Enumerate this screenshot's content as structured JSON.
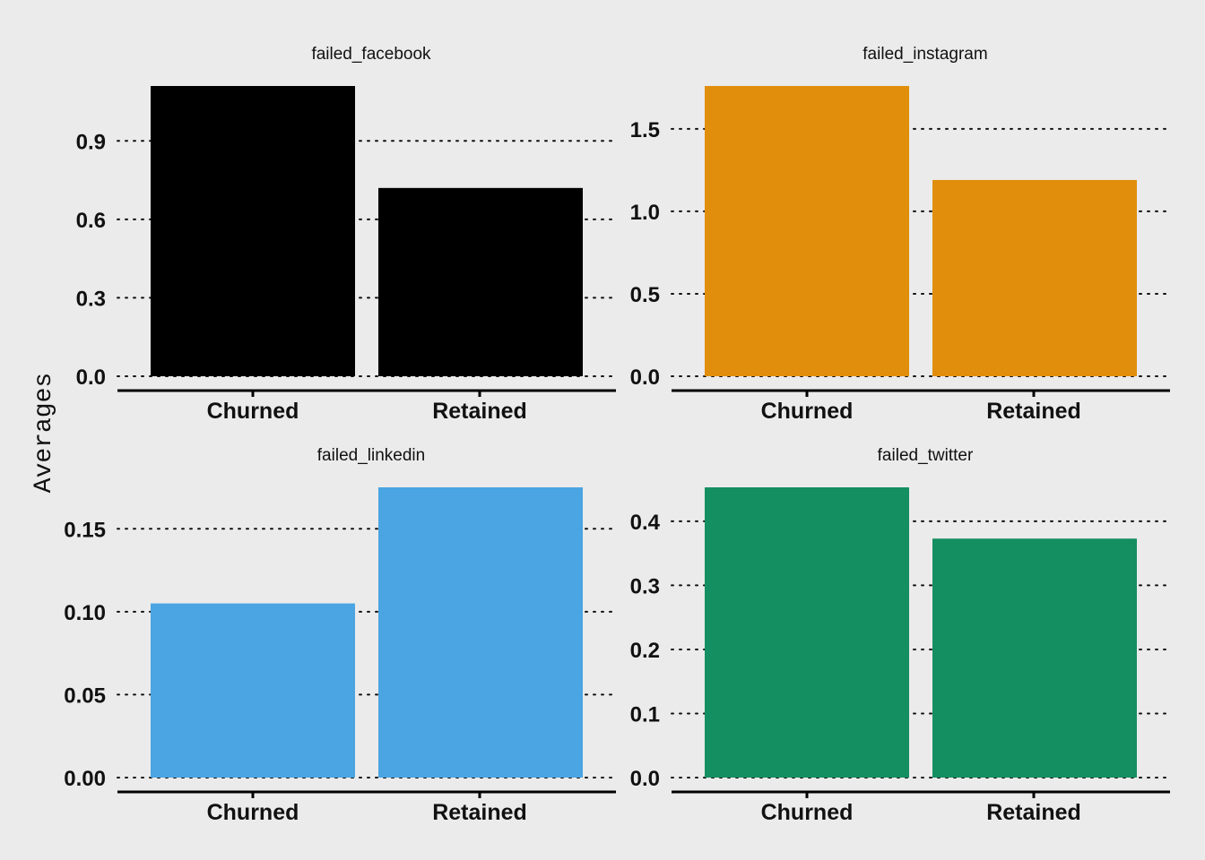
{
  "chart_data": {
    "type": "bar",
    "layout": "facet-grid-2x2",
    "ylabel": "Averages",
    "xlabel": "",
    "categories": [
      "Churned",
      "Retained"
    ],
    "grid": "horizontal-dotted",
    "legend": "none",
    "facets": [
      {
        "title": "failed_facebook",
        "color": "#000000",
        "values": [
          1.11,
          0.72
        ],
        "ylim": [
          0,
          1.11
        ],
        "yticks": [
          0.0,
          0.3,
          0.6,
          0.9
        ],
        "ytick_labels": [
          "0.0",
          "0.3",
          "0.6",
          "0.9"
        ]
      },
      {
        "title": "failed_instagram",
        "color": "#E08E0B",
        "values": [
          1.76,
          1.19
        ],
        "ylim": [
          0,
          1.76
        ],
        "yticks": [
          0.0,
          0.5,
          1.0,
          1.5
        ],
        "ytick_labels": [
          "0.0",
          "0.5",
          "1.0",
          "1.5"
        ]
      },
      {
        "title": "failed_linkedin",
        "color": "#4AA5E2",
        "values": [
          0.105,
          0.175
        ],
        "ylim": [
          0,
          0.175
        ],
        "yticks": [
          0.0,
          0.05,
          0.1,
          0.15
        ],
        "ytick_labels": [
          "0.00",
          "0.05",
          "0.10",
          "0.15"
        ]
      },
      {
        "title": "failed_twitter",
        "color": "#148F62",
        "values": [
          0.453,
          0.373
        ],
        "ylim": [
          0,
          0.453
        ],
        "yticks": [
          0.0,
          0.1,
          0.2,
          0.3,
          0.4
        ],
        "ytick_labels": [
          "0.0",
          "0.1",
          "0.2",
          "0.3",
          "0.4"
        ]
      }
    ]
  }
}
